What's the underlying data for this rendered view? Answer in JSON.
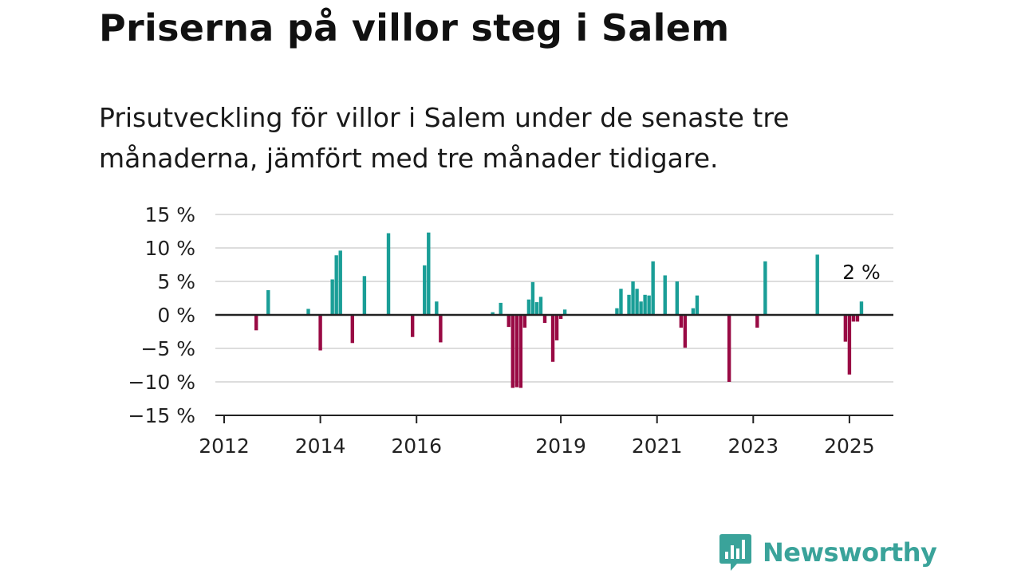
{
  "title": "Priserna på villor steg i Salem",
  "subtitle": "Prisutveckling för villor i Salem under de senaste tre månaderna, jämfört med tre månader tidigare.",
  "brand": "Newsworthy",
  "colors": {
    "positive": "#1a9e97",
    "negative": "#990a44",
    "axis": "#222222",
    "grid": "#dddddd",
    "brand": "#3aa39a"
  },
  "chart_data": {
    "type": "bar",
    "y_unit": "%",
    "ylim": [
      -15,
      15
    ],
    "y_ticks": [
      15,
      10,
      5,
      0,
      -5,
      -10,
      -15
    ],
    "y_tick_labels": [
      "15 %",
      "10 %",
      "5 %",
      "0 %",
      "−5 %",
      "−10 %",
      "−15 %"
    ],
    "x_ticks": [
      2012,
      2014,
      2016,
      2019,
      2021,
      2023,
      2025
    ],
    "x_tick_labels": [
      "2012",
      "2014",
      "2016",
      "2019",
      "2021",
      "2023",
      "2025"
    ],
    "grid": "horizontal",
    "points": [
      {
        "x": "2012-09",
        "y": -2.3
      },
      {
        "x": "2012-12",
        "y": 3.7
      },
      {
        "x": "2013-10",
        "y": 0.9
      },
      {
        "x": "2014-01",
        "y": -5.3
      },
      {
        "x": "2014-04",
        "y": 5.3
      },
      {
        "x": "2014-05",
        "y": 8.9
      },
      {
        "x": "2014-06",
        "y": 9.6
      },
      {
        "x": "2014-09",
        "y": -4.2
      },
      {
        "x": "2014-12",
        "y": 5.8
      },
      {
        "x": "2015-06",
        "y": 12.2
      },
      {
        "x": "2015-12",
        "y": -3.3
      },
      {
        "x": "2016-03",
        "y": 7.4
      },
      {
        "x": "2016-04",
        "y": 12.3
      },
      {
        "x": "2016-06",
        "y": 2.0
      },
      {
        "x": "2016-07",
        "y": -4.1
      },
      {
        "x": "2017-08",
        "y": 0.4
      },
      {
        "x": "2017-10",
        "y": 1.8
      },
      {
        "x": "2017-12",
        "y": -1.8
      },
      {
        "x": "2018-01",
        "y": -10.9
      },
      {
        "x": "2018-02",
        "y": -10.8
      },
      {
        "x": "2018-03",
        "y": -10.9
      },
      {
        "x": "2018-04",
        "y": -1.9
      },
      {
        "x": "2018-05",
        "y": 2.3
      },
      {
        "x": "2018-06",
        "y": 4.9
      },
      {
        "x": "2018-07",
        "y": 1.9
      },
      {
        "x": "2018-08",
        "y": 2.7
      },
      {
        "x": "2018-09",
        "y": -1.2
      },
      {
        "x": "2018-11",
        "y": -7.0
      },
      {
        "x": "2018-12",
        "y": -3.8
      },
      {
        "x": "2019-01",
        "y": -0.6
      },
      {
        "x": "2019-02",
        "y": 0.8
      },
      {
        "x": "2020-03",
        "y": 1.0
      },
      {
        "x": "2020-04",
        "y": 3.9
      },
      {
        "x": "2020-06",
        "y": 3.0
      },
      {
        "x": "2020-07",
        "y": 5.0
      },
      {
        "x": "2020-08",
        "y": 3.9
      },
      {
        "x": "2020-09",
        "y": 2.0
      },
      {
        "x": "2020-10",
        "y": 3.0
      },
      {
        "x": "2020-11",
        "y": 2.9
      },
      {
        "x": "2020-12",
        "y": 8.0
      },
      {
        "x": "2021-03",
        "y": 5.9
      },
      {
        "x": "2021-06",
        "y": 5.0
      },
      {
        "x": "2021-07",
        "y": -1.9
      },
      {
        "x": "2021-08",
        "y": -4.9
      },
      {
        "x": "2021-10",
        "y": 1.0
      },
      {
        "x": "2021-11",
        "y": 2.9
      },
      {
        "x": "2022-07",
        "y": -10.0
      },
      {
        "x": "2023-02",
        "y": -1.9
      },
      {
        "x": "2023-04",
        "y": 8.0
      },
      {
        "x": "2024-05",
        "y": 9.0
      },
      {
        "x": "2024-12",
        "y": -4.0
      },
      {
        "x": "2025-01",
        "y": -8.9
      },
      {
        "x": "2025-02",
        "y": -1.0
      },
      {
        "x": "2025-03",
        "y": -1.0
      },
      {
        "x": "2025-04",
        "y": 2.0
      }
    ],
    "annotation": {
      "x": "2025-04",
      "text": "2 %"
    }
  }
}
